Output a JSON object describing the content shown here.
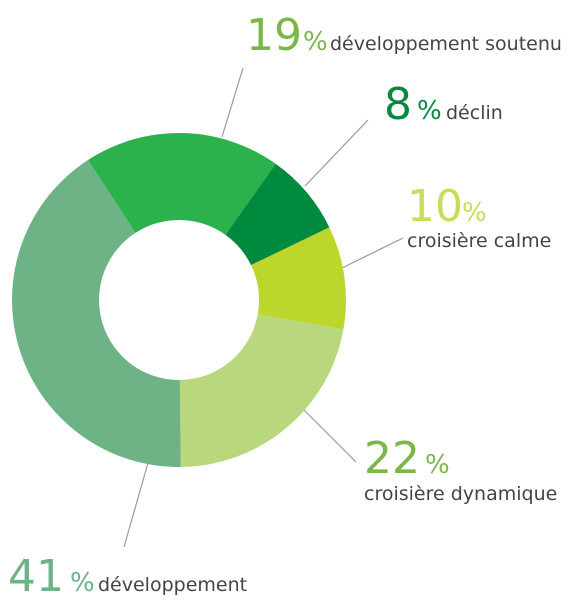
{
  "chart_data": {
    "type": "pie",
    "categories": [
      "développement soutenu",
      "déclin",
      "croisière calme",
      "croisière dynamique",
      "développement"
    ],
    "values": [
      19,
      8,
      10,
      22,
      41
    ],
    "unit": "%",
    "colors": [
      "#2bb24c",
      "#008a3e",
      "#bdd62e",
      "#b9d77d",
      "#6db386"
    ],
    "label_colors": [
      "#7ab648",
      "#008a3e",
      "#c8dc5a",
      "#7ab648",
      "#6db386"
    ],
    "donut": true
  }
}
